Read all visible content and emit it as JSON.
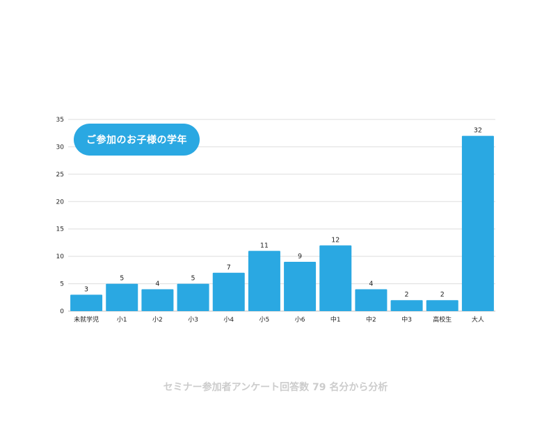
{
  "chart_data": {
    "type": "bar",
    "title": "ご参加のお子様の学年",
    "categories": [
      "未就学児",
      "小1",
      "小2",
      "小3",
      "小4",
      "小5",
      "小6",
      "中1",
      "中2",
      "中3",
      "高校生",
      "大人"
    ],
    "values": [
      3,
      5,
      4,
      5,
      7,
      11,
      9,
      12,
      4,
      2,
      2,
      32
    ],
    "ylim": [
      0,
      35
    ],
    "yticks": [
      0,
      5,
      10,
      15,
      20,
      25,
      30,
      35
    ],
    "grid": true,
    "data_labels": true,
    "bar_color": "#2aa8e2",
    "grid_color": "#dddddd"
  },
  "footer": "セミナー参加者アンケート回答数 79 名分から分析"
}
